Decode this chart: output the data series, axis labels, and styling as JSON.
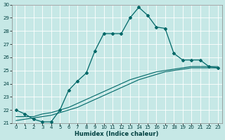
{
  "xlabel": "Humidex (Indice chaleur)",
  "ylabel": "",
  "bg_color": "#c6e8e6",
  "grid_color": "#ffffff",
  "line_color": "#006868",
  "xlim": [
    -0.5,
    23.5
  ],
  "ylim": [
    21,
    30
  ],
  "xticks": [
    0,
    1,
    2,
    3,
    4,
    5,
    6,
    7,
    8,
    9,
    10,
    11,
    12,
    13,
    14,
    15,
    16,
    17,
    18,
    19,
    20,
    21,
    22,
    23
  ],
  "yticks": [
    21,
    22,
    23,
    24,
    25,
    26,
    27,
    28,
    29,
    30
  ],
  "series1_x": [
    0,
    1,
    2,
    3,
    4,
    5,
    6,
    7,
    8,
    9,
    10,
    11,
    12,
    13,
    14,
    15,
    16,
    17,
    18,
    19,
    20,
    21,
    22,
    23
  ],
  "series1_y": [
    22.0,
    21.7,
    21.3,
    21.1,
    21.1,
    22.0,
    23.5,
    24.2,
    24.8,
    26.5,
    27.8,
    27.8,
    27.8,
    29.0,
    29.8,
    29.2,
    28.3,
    28.2,
    26.3,
    25.8,
    25.8,
    25.8,
    25.3,
    25.2
  ],
  "series2_x": [
    0,
    1,
    2,
    3,
    4,
    5,
    6,
    7,
    8,
    9,
    10,
    11,
    12,
    13,
    14,
    15,
    16,
    17,
    18,
    19,
    20,
    21,
    22,
    23
  ],
  "series2_y": [
    21.5,
    21.5,
    21.5,
    21.7,
    21.8,
    22.0,
    22.2,
    22.5,
    22.8,
    23.1,
    23.4,
    23.7,
    24.0,
    24.3,
    24.5,
    24.7,
    24.9,
    25.0,
    25.1,
    25.2,
    25.3,
    25.3,
    25.3,
    25.3
  ],
  "series3_x": [
    0,
    1,
    2,
    3,
    4,
    5,
    6,
    7,
    8,
    9,
    10,
    11,
    12,
    13,
    14,
    15,
    16,
    17,
    18,
    19,
    20,
    21,
    22,
    23
  ],
  "series3_y": [
    21.2,
    21.3,
    21.4,
    21.5,
    21.6,
    21.8,
    22.0,
    22.2,
    22.5,
    22.8,
    23.1,
    23.4,
    23.7,
    24.0,
    24.3,
    24.5,
    24.7,
    24.9,
    25.0,
    25.1,
    25.2,
    25.2,
    25.2,
    25.2
  ],
  "xlabel_fontsize": 6.0,
  "tick_fontsize": 5.0,
  "marker_size": 2.0
}
